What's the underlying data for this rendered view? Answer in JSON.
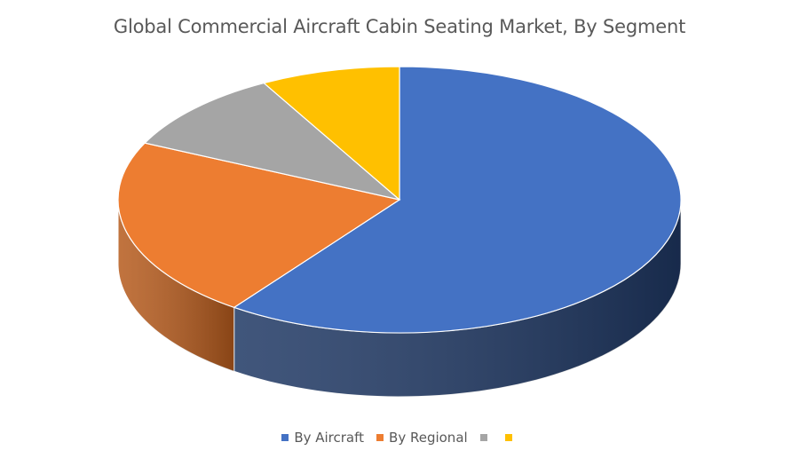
{
  "chart_data": {
    "type": "pie",
    "title": "Global Commercial Aircraft Cabin Seating Market, By Segment",
    "three_d": true,
    "legend_position": "bottom",
    "slices": [
      {
        "label": "By Aircraft",
        "value": 60,
        "color": "#4472C4",
        "side_color": "#1F3864"
      },
      {
        "label": "By Regional",
        "value": 22,
        "color": "#ED7D31",
        "side_color": "#B65B1D"
      },
      {
        "label": "",
        "value": 10,
        "color": "#A5A5A5",
        "side_color": "#7B7B7B"
      },
      {
        "label": "",
        "value": 8,
        "color": "#FFC000",
        "side_color": "#BF9000"
      }
    ]
  }
}
